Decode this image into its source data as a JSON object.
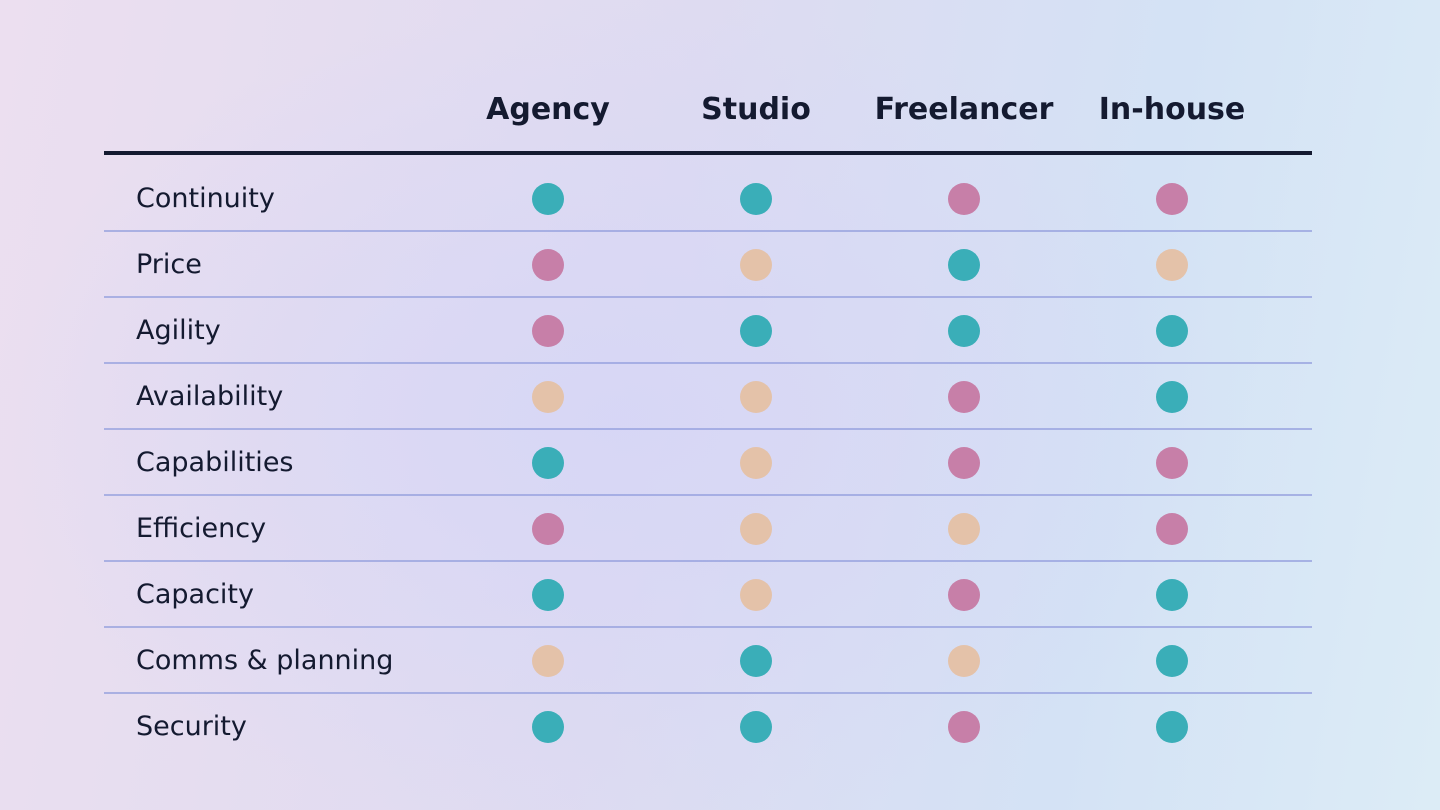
{
  "chart_data": {
    "type": "table",
    "columns": [
      "Agency",
      "Studio",
      "Freelancer",
      "In-house"
    ],
    "rows": [
      {
        "label": "Continuity",
        "ratings": [
          "teal",
          "teal",
          "pink",
          "pink"
        ]
      },
      {
        "label": "Price",
        "ratings": [
          "pink",
          "peach",
          "teal",
          "peach"
        ]
      },
      {
        "label": "Agility",
        "ratings": [
          "pink",
          "teal",
          "teal",
          "teal"
        ]
      },
      {
        "label": "Availability",
        "ratings": [
          "peach",
          "peach",
          "pink",
          "teal"
        ]
      },
      {
        "label": "Capabilities",
        "ratings": [
          "teal",
          "peach",
          "pink",
          "pink"
        ]
      },
      {
        "label": "Efficiency",
        "ratings": [
          "pink",
          "peach",
          "peach",
          "pink"
        ]
      },
      {
        "label": "Capacity",
        "ratings": [
          "teal",
          "peach",
          "pink",
          "teal"
        ]
      },
      {
        "label": "Comms & planning",
        "ratings": [
          "peach",
          "teal",
          "peach",
          "teal"
        ]
      },
      {
        "label": "Security",
        "ratings": [
          "teal",
          "teal",
          "pink",
          "teal"
        ]
      }
    ],
    "colors": {
      "teal": "#3aaeb8",
      "pink": "#c77fa8",
      "peach": "#e4c2a9"
    }
  }
}
